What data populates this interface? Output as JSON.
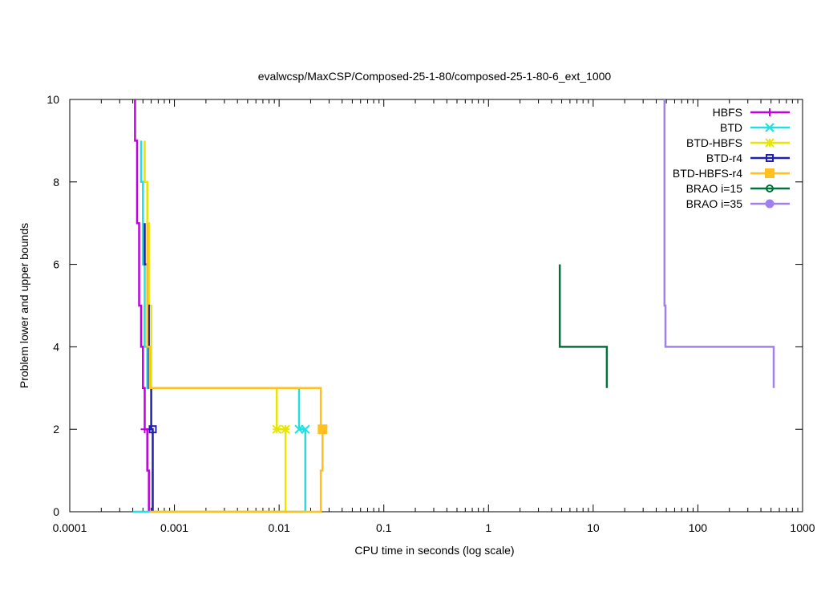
{
  "chart_data": {
    "type": "line",
    "title": "evalwcsp/MaxCSP/Composed-25-1-80/composed-25-1-80-6_ext_1000",
    "xlabel": "CPU time in seconds (log scale)",
    "ylabel": "Problem lower and upper bounds",
    "xscale": "log",
    "xlim": [
      0.0001,
      1000
    ],
    "ylim": [
      0,
      10
    ],
    "x_ticks": [
      0.0001,
      0.001,
      0.01,
      0.1,
      1,
      10,
      100,
      1000
    ],
    "x_tick_labels": [
      "0.0001",
      "0.001",
      "0.01",
      "0.1",
      "1",
      "10",
      "100",
      "1000"
    ],
    "y_ticks": [
      0,
      2,
      4,
      6,
      8,
      10
    ],
    "y_tick_labels": [
      "0",
      "2",
      "4",
      "6",
      "8",
      "10"
    ],
    "grid": false,
    "legend_position": "top-right",
    "series": [
      {
        "name": "HBFS",
        "color": "#c000e0",
        "marker": "plus",
        "points": [
          [
            0.00042,
            10
          ],
          [
            0.00042,
            9
          ],
          [
            0.00044,
            9
          ],
          [
            0.00044,
            7
          ],
          [
            0.00046,
            7
          ],
          [
            0.00046,
            5
          ],
          [
            0.00048,
            5
          ],
          [
            0.00048,
            4
          ],
          [
            0.0005,
            4
          ],
          [
            0.0005,
            3
          ],
          [
            0.00052,
            3
          ],
          [
            0.00052,
            2
          ],
          [
            0.00055,
            2
          ],
          [
            0.00055,
            1
          ],
          [
            0.00057,
            1
          ],
          [
            0.00057,
            0
          ]
        ],
        "marker_points": [
          [
            0.00052,
            2
          ]
        ]
      },
      {
        "name": "BTD",
        "color": "#20e0e0",
        "marker": "x",
        "points": [
          [
            0.00048,
            9
          ],
          [
            0.00048,
            8
          ],
          [
            0.0005,
            8
          ],
          [
            0.0005,
            6
          ],
          [
            0.00052,
            6
          ],
          [
            0.00052,
            4
          ],
          [
            0.00055,
            4
          ],
          [
            0.00055,
            3
          ],
          [
            0.0155,
            3
          ],
          [
            0.0155,
            2
          ],
          [
            0.0178,
            2
          ],
          [
            0.0178,
            0
          ],
          [
            0.0004,
            0
          ]
        ],
        "marker_points": [
          [
            0.0155,
            2
          ],
          [
            0.0178,
            2
          ]
        ]
      },
      {
        "name": "BTD-HBFS",
        "color": "#e6e600",
        "marker": "star",
        "points": [
          [
            0.00052,
            9
          ],
          [
            0.00052,
            8
          ],
          [
            0.00055,
            8
          ],
          [
            0.00055,
            7
          ],
          [
            0.00057,
            7
          ],
          [
            0.00057,
            5
          ],
          [
            0.0006,
            5
          ],
          [
            0.0006,
            3
          ],
          [
            0.0095,
            3
          ],
          [
            0.0095,
            2
          ],
          [
            0.0115,
            2
          ],
          [
            0.0115,
            0
          ],
          [
            0.0006,
            0
          ]
        ],
        "marker_points": [
          [
            0.0095,
            2
          ],
          [
            0.0115,
            2
          ]
        ]
      },
      {
        "name": "BTD-r4",
        "color": "#2020b0",
        "marker": "open-square",
        "points": [
          [
            0.00052,
            7
          ],
          [
            0.00052,
            6
          ],
          [
            0.00055,
            6
          ],
          [
            0.00055,
            5
          ],
          [
            0.00057,
            5
          ],
          [
            0.00057,
            3
          ],
          [
            0.0006,
            3
          ],
          [
            0.0006,
            2
          ],
          [
            0.00062,
            2
          ],
          [
            0.00062,
            0
          ]
        ],
        "marker_points": [
          [
            0.00062,
            2
          ]
        ]
      },
      {
        "name": "BTD-HBFS-r4",
        "color": "#ffc020",
        "marker": "filled-square",
        "points": [
          [
            0.00055,
            7
          ],
          [
            0.00055,
            4
          ],
          [
            0.00058,
            4
          ],
          [
            0.00058,
            3
          ],
          [
            0.025,
            3
          ],
          [
            0.025,
            2
          ],
          [
            0.026,
            2
          ],
          [
            0.026,
            1
          ],
          [
            0.025,
            1
          ],
          [
            0.025,
            0
          ],
          [
            0.00058,
            0
          ]
        ],
        "marker_points": [
          [
            0.026,
            2
          ]
        ]
      },
      {
        "name": "BRAO i=15",
        "color": "#00733a",
        "marker": "open-circle",
        "points": [
          [
            4.8,
            6
          ],
          [
            4.8,
            4
          ],
          [
            13.5,
            4
          ],
          [
            13.5,
            3
          ]
        ],
        "marker_points": []
      },
      {
        "name": "BRAO i=35",
        "color": "#a080f0",
        "marker": "filled-circle",
        "points": [
          [
            48,
            10
          ],
          [
            48,
            5
          ],
          [
            49,
            5
          ],
          [
            49,
            4
          ],
          [
            530,
            4
          ],
          [
            530,
            3
          ]
        ],
        "marker_points": []
      }
    ]
  }
}
